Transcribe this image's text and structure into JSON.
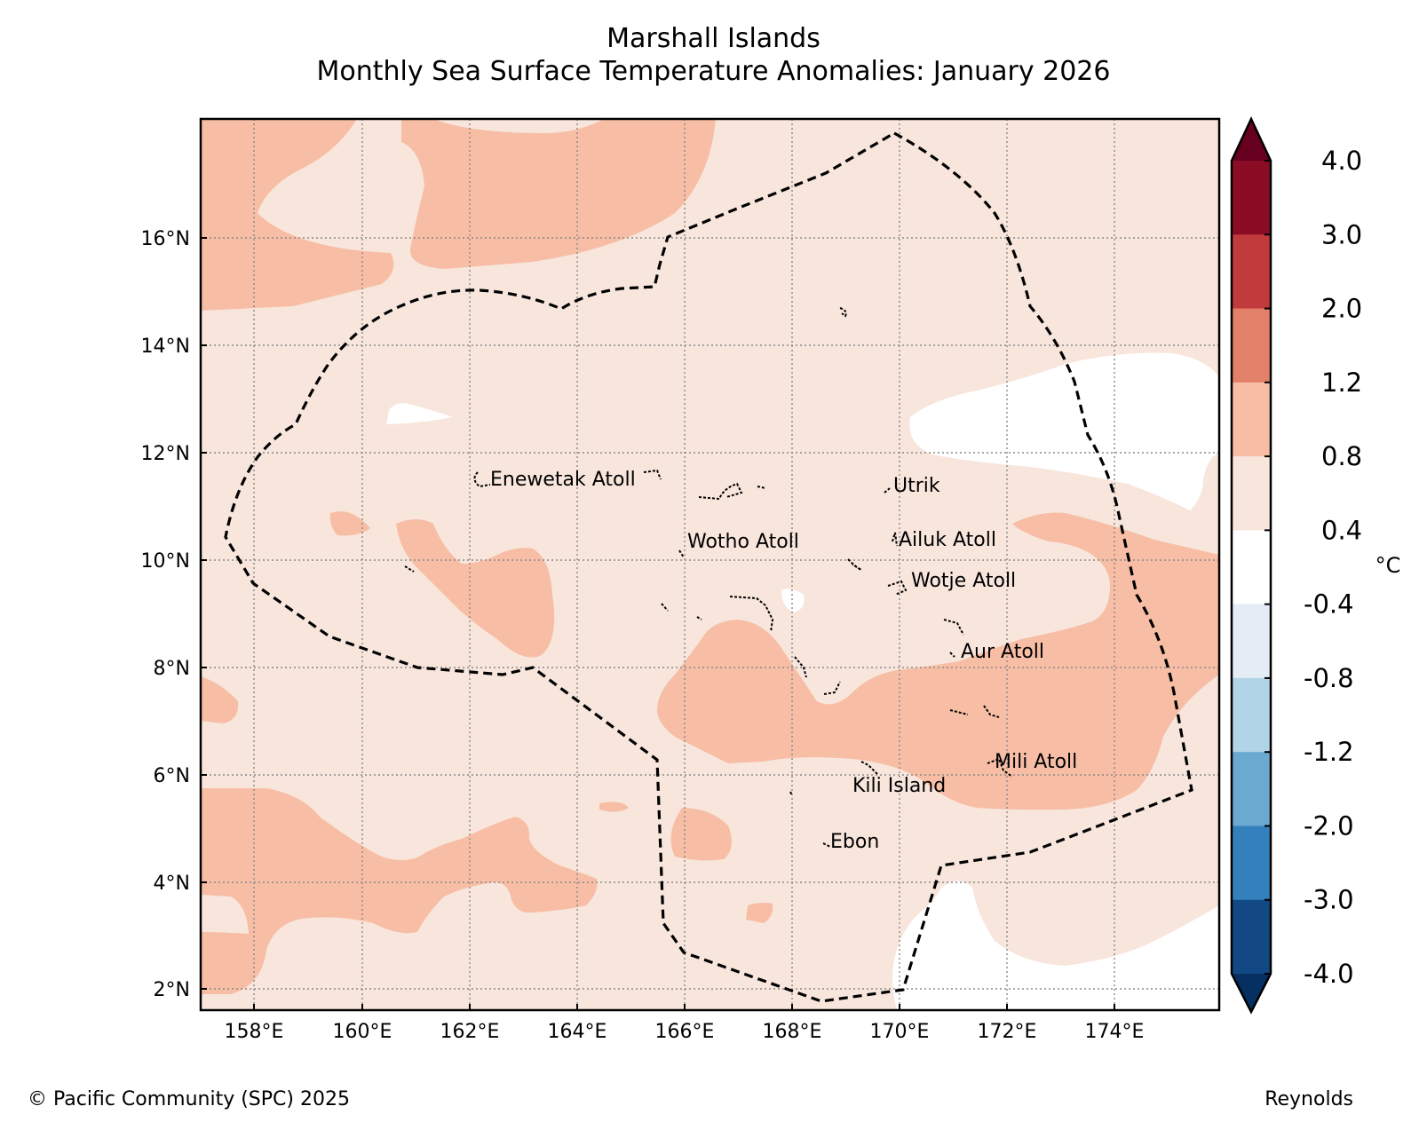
{
  "title": {
    "line1": "Marshall Islands",
    "line2": "Monthly Sea Surface Temperature Anomalies: January 2026"
  },
  "map": {
    "lon_ticks": [
      "158°E",
      "160°E",
      "162°E",
      "164°E",
      "166°E",
      "168°E",
      "170°E",
      "172°E",
      "174°E"
    ],
    "lat_ticks": [
      "16°N",
      "14°N",
      "12°N",
      "10°N",
      "8°N",
      "6°N",
      "4°N",
      "2°N"
    ],
    "place_labels": [
      "Enewetak Atoll",
      "Utrik",
      "Wotho Atoll",
      "Ailuk Atoll",
      "Wotje Atoll",
      "Aur Atoll",
      "Mili Atoll",
      "Kili Island",
      "Ebon"
    ],
    "fill_colors": {
      "band_0_4_to_0_8": "#f8e6dd",
      "band_0_8_to_1_2": "#f7bea5",
      "neutral": "#ffffff"
    }
  },
  "colorbar": {
    "unit": "°C",
    "tick_labels": [
      "4.0",
      "3.0",
      "2.0",
      "1.2",
      "0.8",
      "0.4",
      "-0.4",
      "-0.8",
      "-1.2",
      "-2.0",
      "-3.0",
      "-4.0"
    ],
    "colors": [
      "#67001f",
      "#8b0c25",
      "#c13b3d",
      "#e3806a",
      "#f7bea5",
      "#f8e6dd",
      "#ffffff",
      "#e4edf5",
      "#b2d4e7",
      "#6aa9d0",
      "#3480bc",
      "#124985",
      "#053061"
    ]
  },
  "footer": {
    "copyright": "© Pacific Community (SPC) 2025",
    "source": "Reynolds"
  }
}
